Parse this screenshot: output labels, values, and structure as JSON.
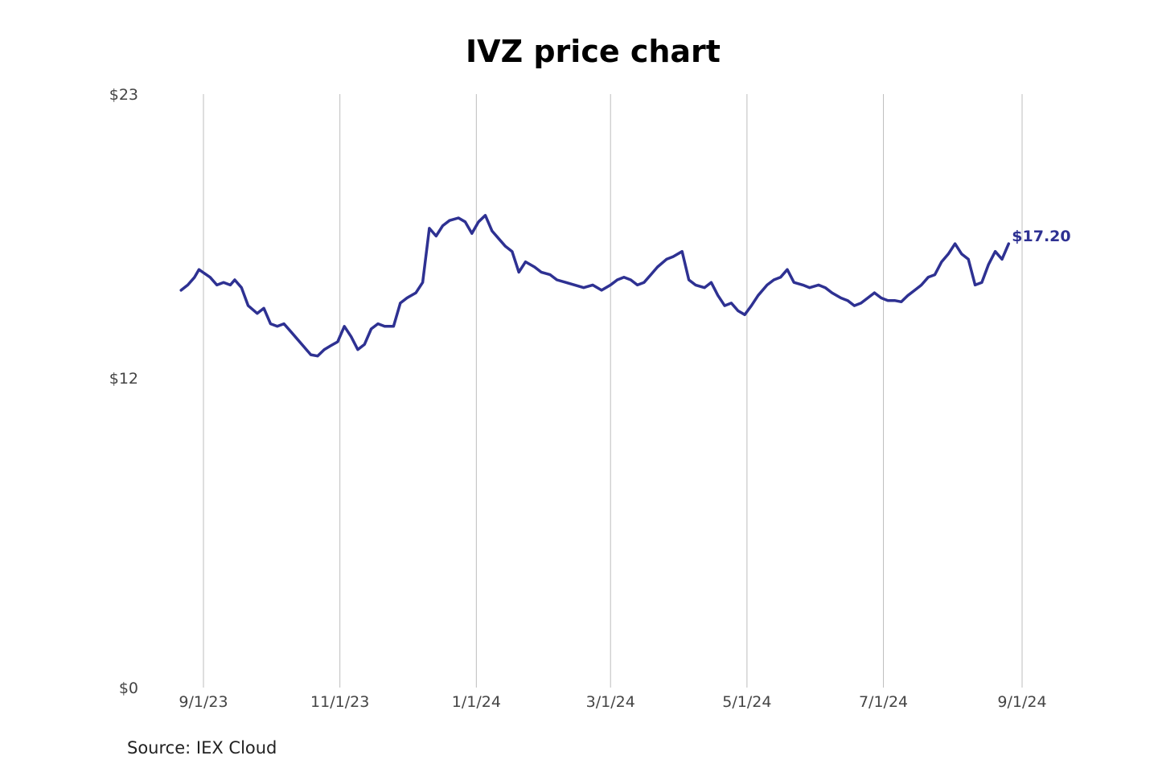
{
  "chart_data": {
    "type": "line",
    "title": "IVZ price chart",
    "source": "Source: IEX Cloud",
    "xlabel": "",
    "ylabel": "",
    "x_ticks": [
      "9/1/23",
      "11/1/23",
      "1/1/24",
      "3/1/24",
      "5/1/24",
      "7/1/24",
      "9/1/24"
    ],
    "y_ticks": [
      "$0",
      "$12",
      "$23"
    ],
    "ylim": [
      0,
      23
    ],
    "xlim": [
      "2023-08-22",
      "2024-09-01"
    ],
    "grid": "vertical",
    "line_color": "#2e3192",
    "last_value_label": "$17.20",
    "series": [
      {
        "points": [
          [
            "2023-08-22",
            15.4
          ],
          [
            "2023-08-25",
            15.6
          ],
          [
            "2023-08-28",
            15.9
          ],
          [
            "2023-08-30",
            16.2
          ],
          [
            "2023-09-04",
            15.9
          ],
          [
            "2023-09-07",
            15.6
          ],
          [
            "2023-09-10",
            15.7
          ],
          [
            "2023-09-13",
            15.6
          ],
          [
            "2023-09-15",
            15.8
          ],
          [
            "2023-09-18",
            15.5
          ],
          [
            "2023-09-21",
            14.8
          ],
          [
            "2023-09-25",
            14.5
          ],
          [
            "2023-09-28",
            14.7
          ],
          [
            "2023-10-01",
            14.1
          ],
          [
            "2023-10-04",
            14.0
          ],
          [
            "2023-10-07",
            14.1
          ],
          [
            "2023-10-10",
            13.8
          ],
          [
            "2023-10-13",
            13.5
          ],
          [
            "2023-10-16",
            13.2
          ],
          [
            "2023-10-19",
            12.9
          ],
          [
            "2023-10-22",
            12.85
          ],
          [
            "2023-10-25",
            13.1
          ],
          [
            "2023-10-28",
            13.25
          ],
          [
            "2023-10-31",
            13.4
          ],
          [
            "2023-11-03",
            14.0
          ],
          [
            "2023-11-06",
            13.6
          ],
          [
            "2023-11-09",
            13.1
          ],
          [
            "2023-11-12",
            13.3
          ],
          [
            "2023-11-15",
            13.9
          ],
          [
            "2023-11-18",
            14.1
          ],
          [
            "2023-11-21",
            14.0
          ],
          [
            "2023-11-25",
            14.0
          ],
          [
            "2023-11-28",
            14.9
          ],
          [
            "2023-12-01",
            15.1
          ],
          [
            "2023-12-05",
            15.3
          ],
          [
            "2023-12-08",
            15.7
          ],
          [
            "2023-12-11",
            17.8
          ],
          [
            "2023-12-14",
            17.5
          ],
          [
            "2023-12-17",
            17.9
          ],
          [
            "2023-12-20",
            18.1
          ],
          [
            "2023-12-24",
            18.2
          ],
          [
            "2023-12-27",
            18.05
          ],
          [
            "2023-12-30",
            17.6
          ],
          [
            "2024-01-02",
            18.05
          ],
          [
            "2024-01-05",
            18.3
          ],
          [
            "2024-01-08",
            17.7
          ],
          [
            "2024-01-11",
            17.4
          ],
          [
            "2024-01-14",
            17.1
          ],
          [
            "2024-01-17",
            16.9
          ],
          [
            "2024-01-20",
            16.1
          ],
          [
            "2024-01-23",
            16.5
          ],
          [
            "2024-01-27",
            16.3
          ],
          [
            "2024-01-30",
            16.1
          ],
          [
            "2024-02-03",
            16.0
          ],
          [
            "2024-02-06",
            15.8
          ],
          [
            "2024-02-10",
            15.7
          ],
          [
            "2024-02-14",
            15.6
          ],
          [
            "2024-02-18",
            15.5
          ],
          [
            "2024-02-22",
            15.6
          ],
          [
            "2024-02-26",
            15.4
          ],
          [
            "2024-03-01",
            15.6
          ],
          [
            "2024-03-04",
            15.8
          ],
          [
            "2024-03-07",
            15.9
          ],
          [
            "2024-03-10",
            15.8
          ],
          [
            "2024-03-13",
            15.6
          ],
          [
            "2024-03-16",
            15.7
          ],
          [
            "2024-03-19",
            16.0
          ],
          [
            "2024-03-22",
            16.3
          ],
          [
            "2024-03-26",
            16.6
          ],
          [
            "2024-03-29",
            16.7
          ],
          [
            "2024-04-02",
            16.9
          ],
          [
            "2024-04-05",
            15.8
          ],
          [
            "2024-04-08",
            15.6
          ],
          [
            "2024-04-12",
            15.5
          ],
          [
            "2024-04-15",
            15.7
          ],
          [
            "2024-04-18",
            15.2
          ],
          [
            "2024-04-21",
            14.8
          ],
          [
            "2024-04-24",
            14.9
          ],
          [
            "2024-04-27",
            14.6
          ],
          [
            "2024-04-30",
            14.45
          ],
          [
            "2024-05-03",
            14.8
          ],
          [
            "2024-05-06",
            15.2
          ],
          [
            "2024-05-10",
            15.6
          ],
          [
            "2024-05-13",
            15.8
          ],
          [
            "2024-05-16",
            15.9
          ],
          [
            "2024-05-19",
            16.2
          ],
          [
            "2024-05-22",
            15.7
          ],
          [
            "2024-05-26",
            15.6
          ],
          [
            "2024-05-29",
            15.5
          ],
          [
            "2024-06-02",
            15.6
          ],
          [
            "2024-06-05",
            15.5
          ],
          [
            "2024-06-08",
            15.3
          ],
          [
            "2024-06-12",
            15.1
          ],
          [
            "2024-06-15",
            15.0
          ],
          [
            "2024-06-18",
            14.8
          ],
          [
            "2024-06-21",
            14.9
          ],
          [
            "2024-06-24",
            15.1
          ],
          [
            "2024-06-27",
            15.3
          ],
          [
            "2024-06-30",
            15.1
          ],
          [
            "2024-07-03",
            15.0
          ],
          [
            "2024-07-06",
            15.0
          ],
          [
            "2024-07-09",
            14.95
          ],
          [
            "2024-07-12",
            15.2
          ],
          [
            "2024-07-15",
            15.4
          ],
          [
            "2024-07-18",
            15.6
          ],
          [
            "2024-07-21",
            15.9
          ],
          [
            "2024-07-24",
            16.0
          ],
          [
            "2024-07-27",
            16.5
          ],
          [
            "2024-07-30",
            16.8
          ],
          [
            "2024-08-02",
            17.2
          ],
          [
            "2024-08-05",
            16.8
          ],
          [
            "2024-08-08",
            16.6
          ],
          [
            "2024-08-11",
            15.6
          ],
          [
            "2024-08-14",
            15.7
          ],
          [
            "2024-08-17",
            16.4
          ],
          [
            "2024-08-20",
            16.9
          ],
          [
            "2024-08-23",
            16.6
          ],
          [
            "2024-08-26",
            17.2
          ]
        ]
      }
    ]
  }
}
